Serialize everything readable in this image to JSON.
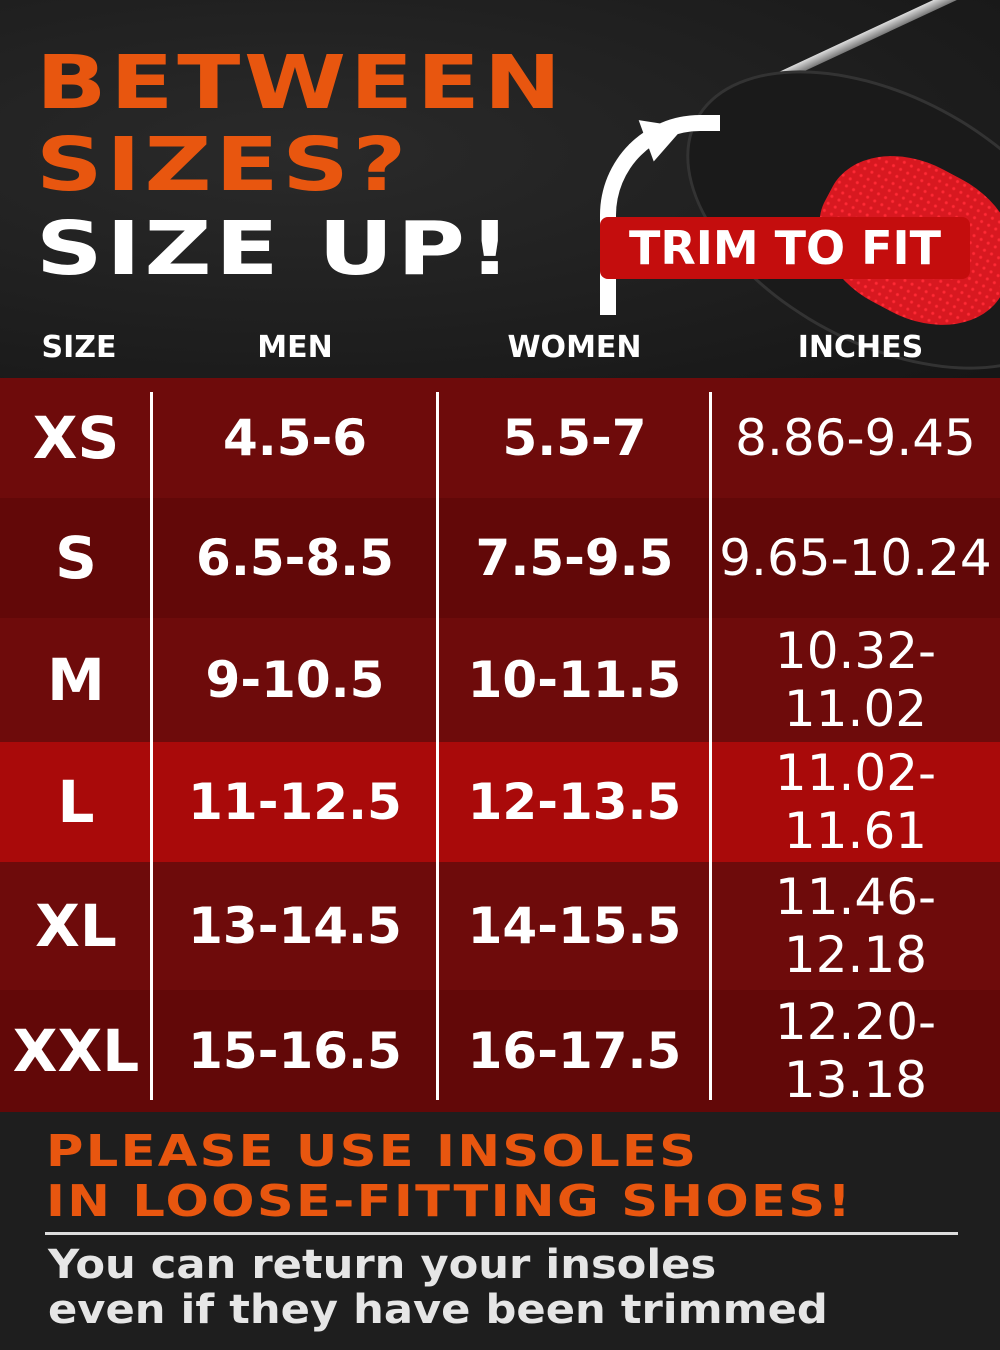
{
  "headline": {
    "line1": "BETWEEN",
    "line2": "SIZES?",
    "line3": "SIZE UP!"
  },
  "badge": "TRIM TO FIT",
  "columns": [
    "SIZE",
    "MEN",
    "WOMEN",
    "INCHES"
  ],
  "rows": [
    {
      "size": "XS",
      "men": "4.5-6",
      "women": "5.5-7",
      "inches": "8.86-9.45"
    },
    {
      "size": "S",
      "men": "6.5-8.5",
      "women": "7.5-9.5",
      "inches": "9.65-10.24"
    },
    {
      "size": "M",
      "men": "9-10.5",
      "women": "10-11.5",
      "inches": "10.32-11.02"
    },
    {
      "size": "L",
      "men": "11-12.5",
      "women": "12-13.5",
      "inches": "11.02-11.61"
    },
    {
      "size": "XL",
      "men": "13-14.5",
      "women": "14-15.5",
      "inches": "11.46-12.18"
    },
    {
      "size": "XXL",
      "men": "15-16.5",
      "women": "16-17.5",
      "inches": "12.20-13.18"
    }
  ],
  "notice": {
    "line1": "PLEASE USE INSOLES",
    "line2": "IN LOOSE-FITTING SHOES!"
  },
  "returns": {
    "line1": "You can return your insoles",
    "line2": "even if they have been trimmed"
  },
  "colors": {
    "orange": "#e8560f",
    "table_red": "#6e0b0b",
    "highlight_red": "#a90a0a",
    "badge_red": "#c40d0d"
  }
}
